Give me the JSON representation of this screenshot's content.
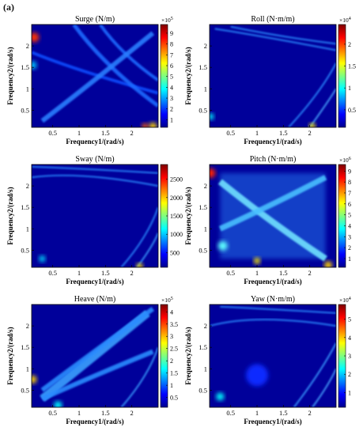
{
  "figure_label": "(a)",
  "colors": {
    "colormap": [
      "#00008f",
      "#0000ff",
      "#007fff",
      "#00ffff",
      "#7fff7f",
      "#ffff00",
      "#ff7f00",
      "#ff0000",
      "#7f0000"
    ],
    "background": "#00009a"
  },
  "chart_data": [
    {
      "type": "heatmap",
      "title": "Surge (N/m)",
      "xlabel": "Frequency1/(rad/s)",
      "ylabel": "Frequency2/(rad/s)",
      "xticks": [
        "0.5",
        "1",
        "1.5",
        "2"
      ],
      "yticks": [
        "0.5",
        "1",
        "1.5",
        "2"
      ],
      "xlim": [
        0.1,
        2.5
      ],
      "ylim": [
        0.1,
        2.5
      ],
      "colorbar": {
        "exponent": "×10^5",
        "exp_base": "×10",
        "exp_power": "5",
        "ticks": [
          "1",
          "2",
          "3",
          "4",
          "5",
          "6",
          "7",
          "8",
          "9"
        ],
        "min": 0.3,
        "max": 9.8
      }
    },
    {
      "type": "heatmap",
      "title": "Roll (N·m/m)",
      "xlabel": "Frequency1/(rad/s)",
      "ylabel": "Frequency2/(rad/s)",
      "xticks": [
        "0.5",
        "1",
        "1.5",
        "2"
      ],
      "yticks": [
        "0.5",
        "1",
        "1.5",
        "2"
      ],
      "xlim": [
        0.1,
        2.5
      ],
      "ylim": [
        0.1,
        2.5
      ],
      "colorbar": {
        "exponent": "×10^4",
        "exp_base": "×10",
        "exp_power": "4",
        "ticks": [
          "0.5",
          "1",
          "1.5",
          "2"
        ],
        "min": 0.1,
        "max": 2.45
      }
    },
    {
      "type": "heatmap",
      "title": "Sway (N/m)",
      "xlabel": "Frequency1/(rad/s)",
      "ylabel": "Frequency2/(rad/s)",
      "xticks": [
        "0.5",
        "1",
        "1.5",
        "2"
      ],
      "yticks": [
        "0.5",
        "1",
        "1.5",
        "2"
      ],
      "xlim": [
        0.1,
        2.5
      ],
      "ylim": [
        0.1,
        2.5
      ],
      "colorbar": {
        "exponent": "",
        "exp_base": "",
        "exp_power": "",
        "ticks": [
          "500",
          "1000",
          "1500",
          "2000",
          "2500"
        ],
        "min": 100,
        "max": 2900
      }
    },
    {
      "type": "heatmap",
      "title": "Pitch (N·m/m)",
      "xlabel": "Frequency1/(rad/s)",
      "ylabel": "Frequency2/(rad/s)",
      "xticks": [
        "0.5",
        "1",
        "1.5",
        "2"
      ],
      "yticks": [
        "0.5",
        "1",
        "1.5",
        "2"
      ],
      "xlim": [
        0.1,
        2.5
      ],
      "ylim": [
        0.1,
        2.5
      ],
      "colorbar": {
        "exponent": "×10^6",
        "exp_base": "×10",
        "exp_power": "6",
        "ticks": [
          "1",
          "2",
          "3",
          "4",
          "5",
          "6",
          "7",
          "8",
          "9"
        ],
        "min": 0.2,
        "max": 9.6
      }
    },
    {
      "type": "heatmap",
      "title": "Heave (N/m)",
      "xlabel": "Frequency1/(rad/s)",
      "ylabel": "Frequency2/(rad/s)",
      "xticks": [
        "0.5",
        "1",
        "1.5",
        "2"
      ],
      "yticks": [
        "0.5",
        "1",
        "1.5",
        "2"
      ],
      "xlim": [
        0.1,
        2.5
      ],
      "ylim": [
        0.1,
        2.5
      ],
      "colorbar": {
        "exponent": "×10^5",
        "exp_base": "×10",
        "exp_power": "5",
        "ticks": [
          "0.5",
          "1",
          "1.5",
          "2",
          "2.5",
          "3",
          "3.5",
          "4"
        ],
        "min": 0.1,
        "max": 4.3
      }
    },
    {
      "type": "heatmap",
      "title": "Yaw (N·m/m)",
      "xlabel": "Frequency1/(rad/s)",
      "ylabel": "Frequency2/(rad/s)",
      "xticks": [
        "0.5",
        "1",
        "1.5",
        "2"
      ],
      "yticks": [
        "0.5",
        "1",
        "1.5",
        "2"
      ],
      "xlim": [
        0.1,
        2.5
      ],
      "ylim": [
        0.1,
        2.5
      ],
      "colorbar": {
        "exponent": "×10^4",
        "exp_base": "×10",
        "exp_power": "4",
        "ticks": [
          "1",
          "2",
          "3",
          "4",
          "5"
        ],
        "min": 0.2,
        "max": 5.8
      }
    }
  ]
}
